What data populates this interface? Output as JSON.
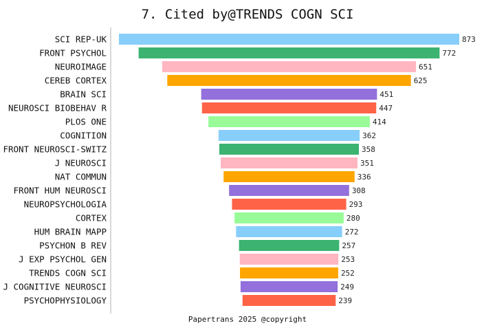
{
  "chart_data": {
    "type": "bar",
    "orientation": "horizontal",
    "layout": "centered funnel",
    "title": "7. Cited by@TRENDS COGN SCI",
    "categories": [
      "SCI REP-UK",
      "FRONT PSYCHOL",
      "NEUROIMAGE",
      "CEREB CORTEX",
      "BRAIN SCI",
      "NEUROSCI BIOBEHAV R",
      "PLOS ONE",
      "COGNITION",
      "FRONT NEUROSCI-SWITZ",
      "J NEUROSCI",
      "NAT COMMUN",
      "FRONT HUM NEUROSCI",
      "NEUROPSYCHOLOGIA",
      "CORTEX",
      "HUM BRAIN MAPP",
      "PSYCHON B REV",
      "J EXP PSYCHOL GEN",
      "TRENDS COGN SCI",
      "J COGNITIVE NEUROSCI",
      "PSYCHOPHYSIOLOGY"
    ],
    "values": [
      873,
      772,
      651,
      625,
      451,
      447,
      414,
      362,
      358,
      351,
      336,
      308,
      293,
      280,
      272,
      257,
      253,
      252,
      249,
      239
    ],
    "colors": [
      "#87CEFA",
      "#3CB371",
      "#FFB6C1",
      "#FFA500",
      "#9370DB",
      "#FF6347",
      "#98FB98"
    ],
    "data_labels": true,
    "grid": false
  },
  "footer": "Papertrans 2025 @copyright"
}
